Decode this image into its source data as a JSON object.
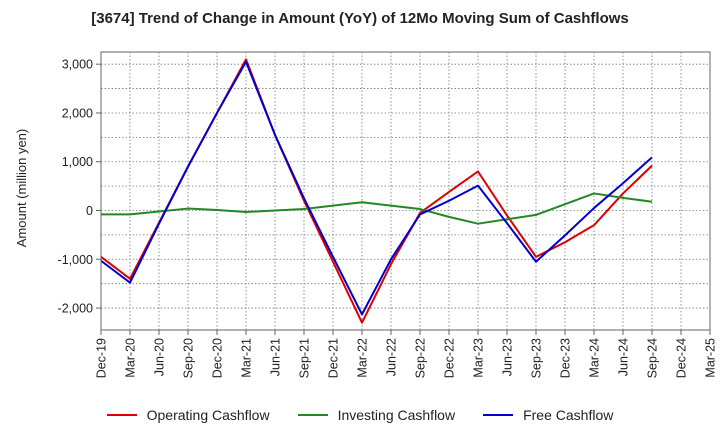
{
  "chart_data": {
    "type": "line",
    "title": "[3674]  Trend of Change in Amount (YoY) of 12Mo Moving Sum of Cashflows",
    "xlabel": "",
    "ylabel": "Amount (million yen)",
    "ylim": [
      -2450,
      3250
    ],
    "yticks": [
      3000,
      2000,
      1000,
      0,
      -1000,
      -2000
    ],
    "ytick_labels": [
      "3,000",
      "2,000",
      "1,000",
      "0",
      "-1,000",
      "-2,000"
    ],
    "categories": [
      "Dec-19",
      "Mar-20",
      "Jun-20",
      "Sep-20",
      "Dec-20",
      "Mar-21",
      "Jun-21",
      "Sep-21",
      "Dec-21",
      "Mar-22",
      "Jun-22",
      "Sep-22",
      "Dec-22",
      "Mar-23",
      "Jun-23",
      "Sep-23",
      "Dec-23",
      "Mar-24",
      "Jun-24",
      "Sep-24",
      "Dec-24",
      "Mar-25"
    ],
    "grid": true,
    "legend_position": "bottom",
    "series": [
      {
        "name": "Operating Cashflow",
        "color": "#dd0000",
        "values": [
          -950,
          -1400,
          -250,
          900,
          2000,
          3100,
          1550,
          200,
          -1050,
          -2300,
          -1100,
          -50,
          380,
          800,
          -100,
          -950,
          -650,
          -300,
          350,
          920,
          null,
          null
        ]
      },
      {
        "name": "Investing Cashflow",
        "color": "#228822",
        "values": [
          -80,
          -80,
          -20,
          40,
          10,
          -30,
          0,
          30,
          100,
          170,
          100,
          30,
          -130,
          -270,
          -180,
          -90,
          130,
          350,
          260,
          180,
          null,
          null
        ]
      },
      {
        "name": "Free Cashflow",
        "color": "#0000cc",
        "values": [
          -1030,
          -1480,
          -270,
          900,
          2000,
          3050,
          1550,
          250,
          -950,
          -2130,
          -1000,
          -80,
          200,
          510,
          -260,
          -1050,
          -510,
          50,
          560,
          1090,
          null,
          null
        ]
      }
    ]
  }
}
